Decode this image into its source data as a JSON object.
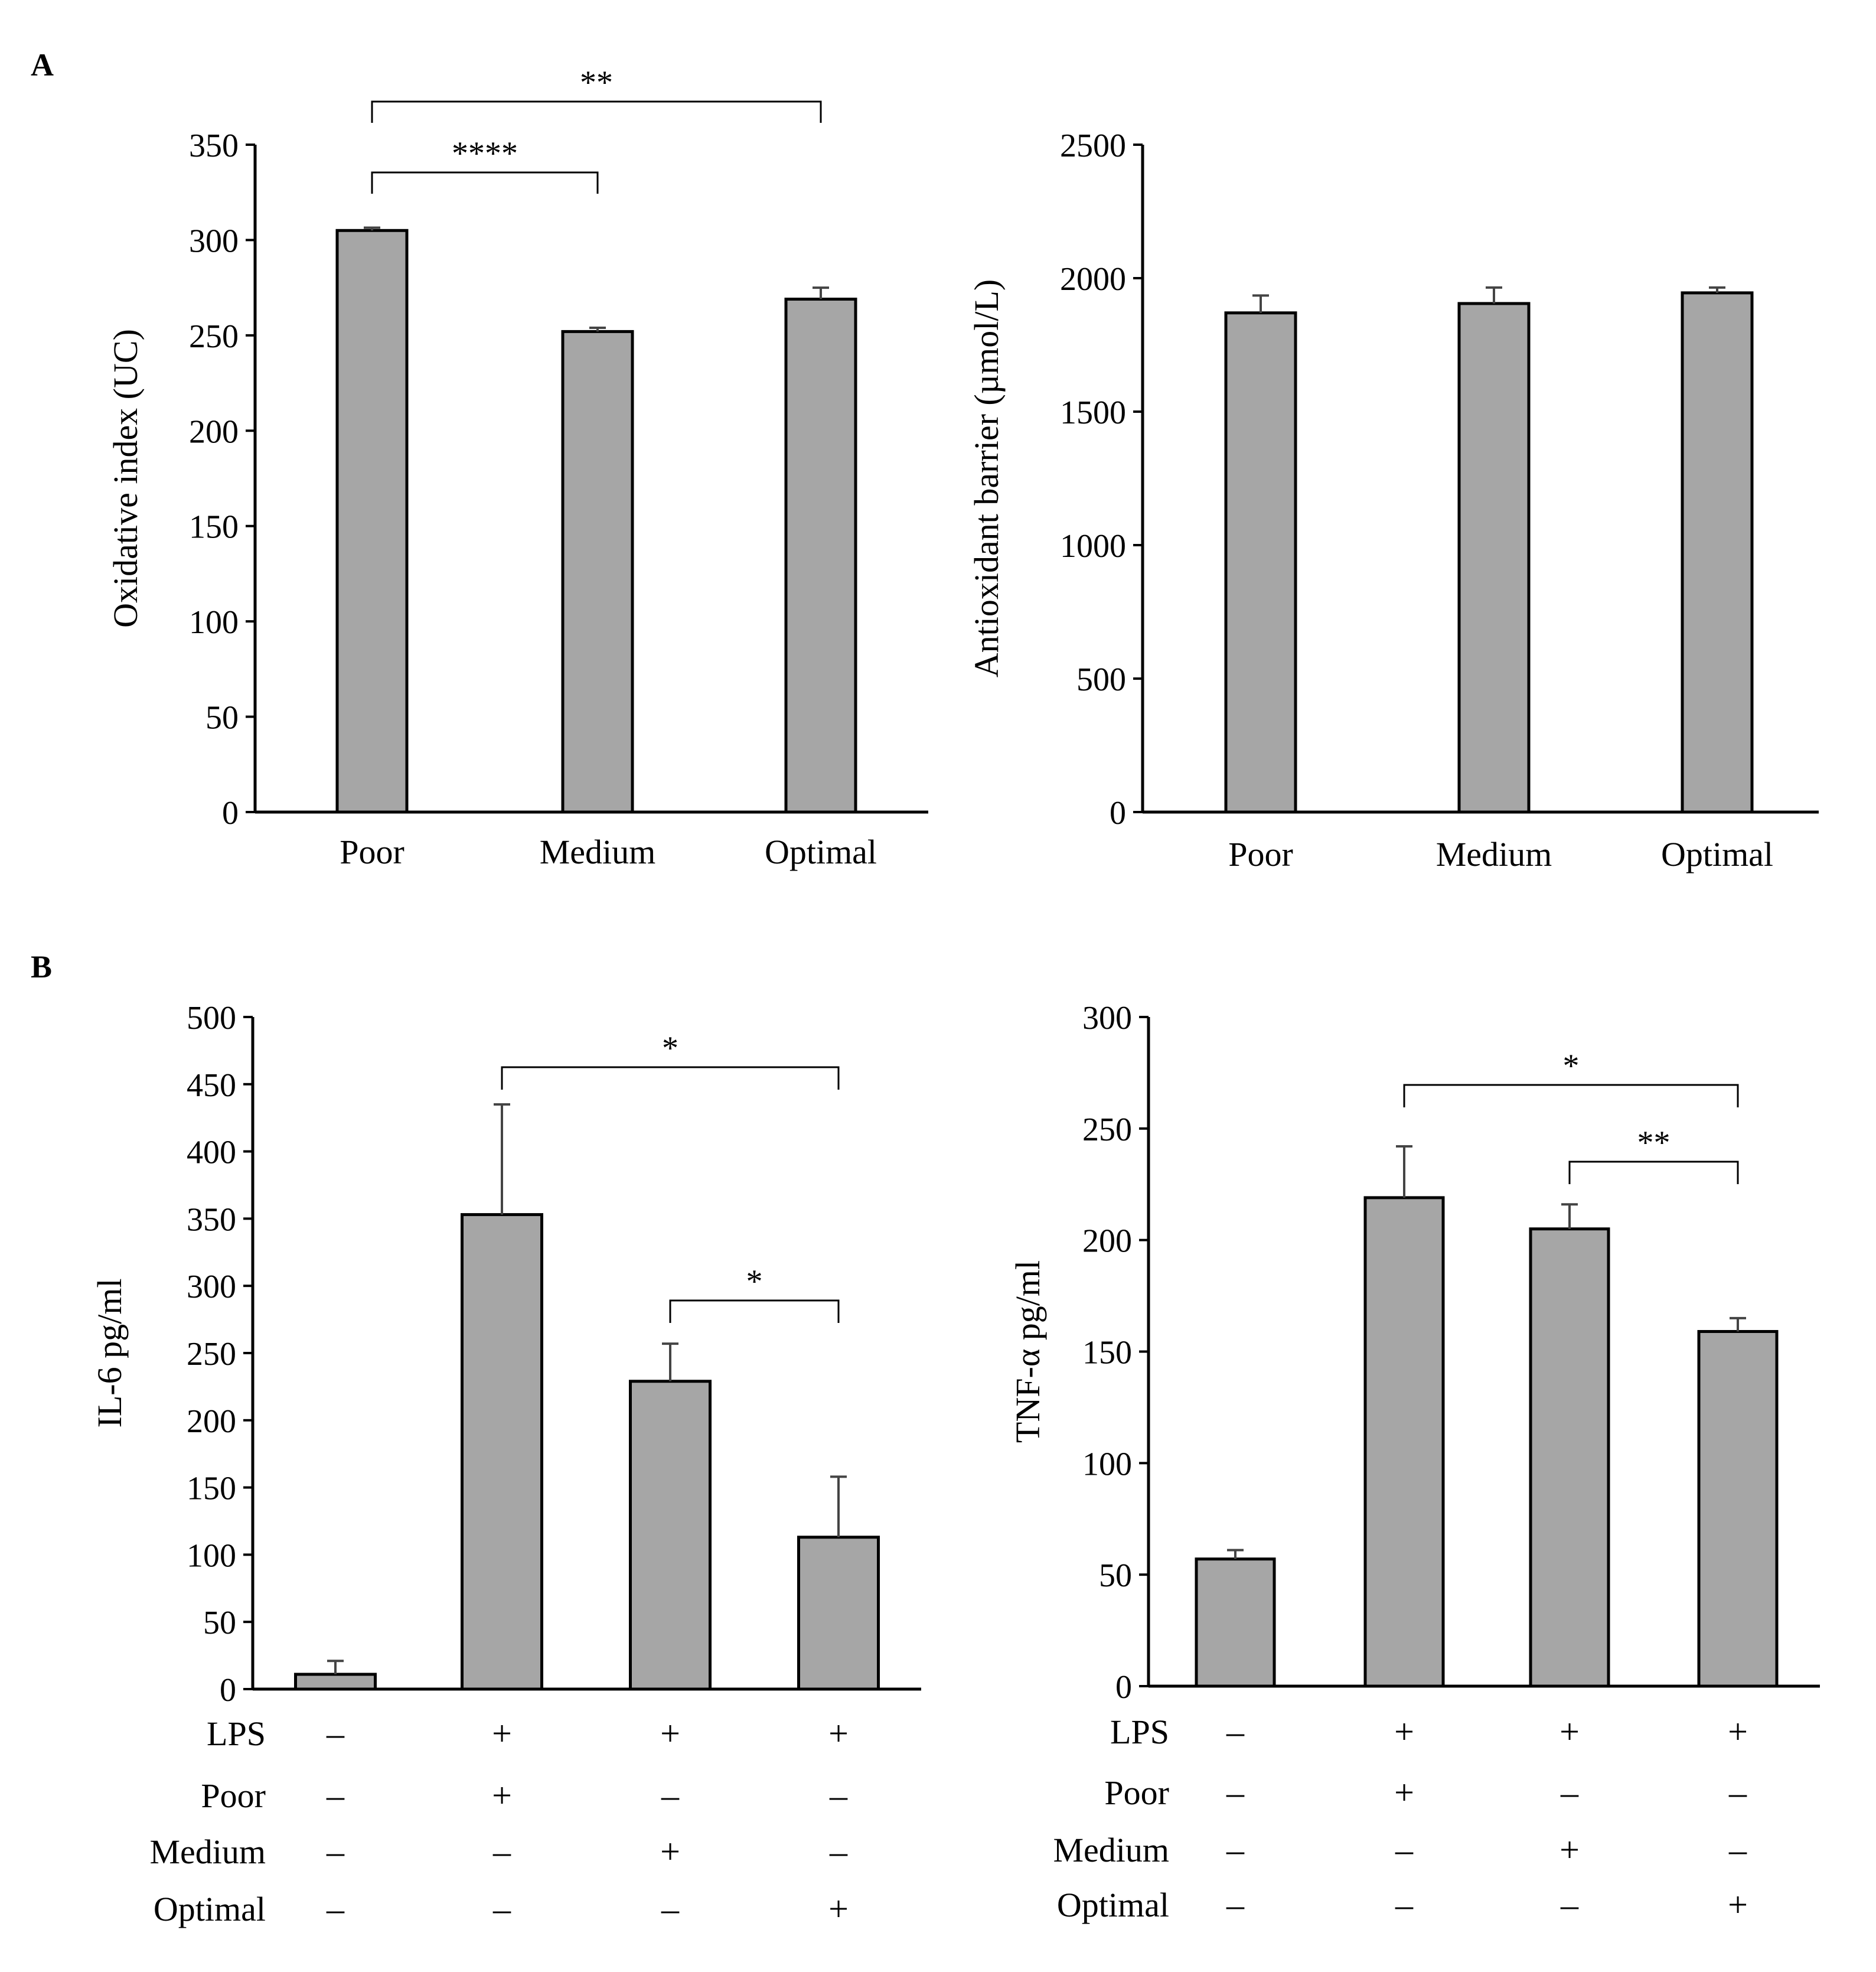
{
  "panel_labels": [
    "A",
    "B"
  ],
  "colors": {
    "bar_fill": "#a6a6a6",
    "bar_stroke": "#000000",
    "error_bar": "#444444"
  },
  "chart_data": [
    {
      "type": "bar",
      "panel": "A",
      "title": "",
      "xlabel": "",
      "ylabel": "Oxidative index (UC)",
      "categories": [
        "Poor",
        "Medium",
        "Optimal"
      ],
      "values": [
        305,
        252,
        269
      ],
      "errors": [
        1.5,
        2,
        6
      ],
      "ylim": [
        0,
        350
      ],
      "yticks": [
        0,
        50,
        100,
        150,
        200,
        250,
        300,
        350
      ],
      "significance": [
        {
          "from": 0,
          "to": 2,
          "label": "**"
        },
        {
          "from": 0,
          "to": 1,
          "label": "****"
        }
      ]
    },
    {
      "type": "bar",
      "panel": "A",
      "title": "",
      "xlabel": "",
      "ylabel": "Antioxidant barrier (µmol/L)",
      "categories": [
        "Poor",
        "Medium",
        "Optimal"
      ],
      "values": [
        1870,
        1905,
        1945
      ],
      "errors": [
        65,
        60,
        20
      ],
      "ylim": [
        0,
        2500
      ],
      "yticks": [
        0,
        500,
        1000,
        1500,
        2000,
        2500
      ],
      "significance": []
    },
    {
      "type": "bar",
      "panel": "B",
      "title": "",
      "xlabel": "",
      "ylabel": "IL-6 pg/ml",
      "values": [
        11,
        353,
        229,
        113
      ],
      "errors": [
        10,
        82,
        28,
        45
      ],
      "ylim": [
        0,
        500
      ],
      "yticks": [
        0,
        50,
        100,
        150,
        200,
        250,
        300,
        350,
        400,
        450,
        500
      ],
      "treatment_rows": [
        {
          "label": "LPS",
          "signs": [
            "–",
            "+",
            "+",
            "+"
          ]
        },
        {
          "label": "Poor",
          "signs": [
            "–",
            "+",
            "–",
            "–"
          ]
        },
        {
          "label": "Medium",
          "signs": [
            "–",
            "–",
            "+",
            "–"
          ]
        },
        {
          "label": "Optimal",
          "signs": [
            "–",
            "–",
            "–",
            "+"
          ]
        }
      ],
      "significance": [
        {
          "from": 1,
          "to": 3,
          "label": "*"
        },
        {
          "from": 2,
          "to": 3,
          "label": "*"
        }
      ]
    },
    {
      "type": "bar",
      "panel": "B",
      "title": "",
      "xlabel": "",
      "ylabel": "TNF-α pg/ml",
      "values": [
        57,
        219,
        205,
        159
      ],
      "errors": [
        4,
        23,
        11,
        6
      ],
      "ylim": [
        0,
        300
      ],
      "yticks": [
        0,
        50,
        100,
        150,
        200,
        250,
        300
      ],
      "treatment_rows": [
        {
          "label": "LPS",
          "signs": [
            "–",
            "+",
            "+",
            "+"
          ]
        },
        {
          "label": "Poor",
          "signs": [
            "–",
            "+",
            "–",
            "–"
          ]
        },
        {
          "label": "Medium",
          "signs": [
            "–",
            "–",
            "+",
            "–"
          ]
        },
        {
          "label": "Optimal",
          "signs": [
            "–",
            "–",
            "–",
            "+"
          ]
        }
      ],
      "significance": [
        {
          "from": 1,
          "to": 3,
          "label": "*"
        },
        {
          "from": 2,
          "to": 3,
          "label": "**"
        }
      ]
    }
  ]
}
